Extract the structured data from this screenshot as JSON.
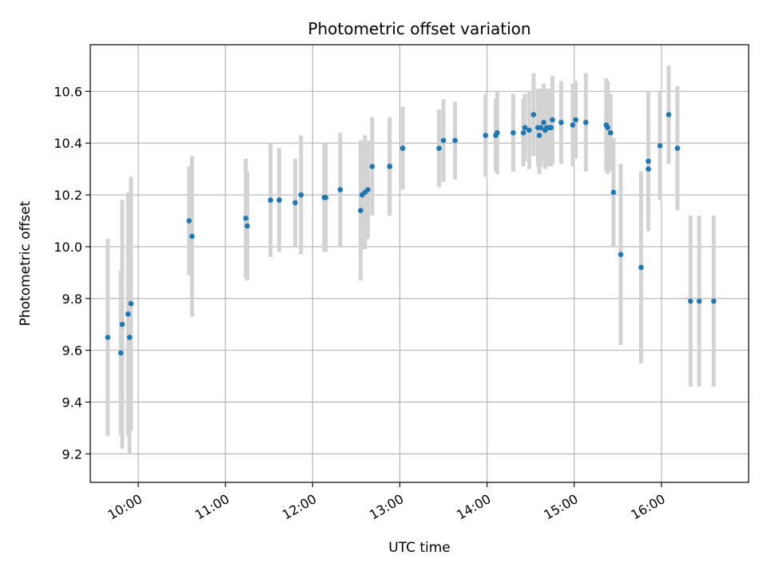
{
  "chart_data": {
    "type": "scatter",
    "title": "Photometric offset variation",
    "xlabel": "UTC time",
    "ylabel": "Photometric offset",
    "x_is_time": true,
    "xlim": [
      "09:27",
      "17:00"
    ],
    "ylim": [
      9.09,
      10.78
    ],
    "xticks": [
      "10:00",
      "11:00",
      "12:00",
      "13:00",
      "14:00",
      "15:00",
      "16:00"
    ],
    "yticks": [
      9.2,
      9.4,
      9.6,
      9.8,
      10.0,
      10.2,
      10.4,
      10.6
    ],
    "grid": true,
    "colors": {
      "point": "#1f77b4",
      "errorbar": "#d3d3d3",
      "grid": "#b0b0b0"
    },
    "series": [
      {
        "x": [
          "09:39",
          "09:48",
          "09:49",
          "09:53",
          "09:54",
          "09:55",
          "10:35",
          "10:37",
          "11:14",
          "11:15",
          "11:31",
          "11:37",
          "11:48",
          "11:52",
          "12:08",
          "12:09",
          "12:19",
          "12:33",
          "12:34",
          "12:36",
          "12:38",
          "12:41",
          "12:53",
          "12:53",
          "13:02",
          "13:27",
          "13:30",
          "13:38",
          "13:59",
          "14:06",
          "14:07",
          "14:18",
          "14:25",
          "14:26",
          "14:29",
          "14:32",
          "14:35",
          "14:36",
          "14:37",
          "14:39",
          "14:40",
          "14:41",
          "14:43",
          "14:44",
          "14:45",
          "14:51",
          "14:59",
          "15:01",
          "15:08",
          "15:22",
          "15:23",
          "15:25",
          "15:27",
          "15:32",
          "15:46",
          "15:51",
          "15:51",
          "15:59",
          "16:05",
          "16:11",
          "16:20",
          "16:26",
          "16:36"
        ],
        "y": [
          9.65,
          9.59,
          9.7,
          9.74,
          9.65,
          9.78,
          10.1,
          10.04,
          10.11,
          10.08,
          10.18,
          10.18,
          10.17,
          10.2,
          10.19,
          10.19,
          10.22,
          10.14,
          10.2,
          10.21,
          10.22,
          10.31,
          10.31,
          10.31,
          10.38,
          10.38,
          10.41,
          10.41,
          10.43,
          10.43,
          10.44,
          10.44,
          10.44,
          10.46,
          10.45,
          10.51,
          10.46,
          10.43,
          10.46,
          10.48,
          10.45,
          10.46,
          10.46,
          10.46,
          10.49,
          10.48,
          10.47,
          10.49,
          10.48,
          10.47,
          10.46,
          10.44,
          10.21,
          9.97,
          9.92,
          10.33,
          10.3,
          10.39,
          10.51,
          10.38,
          9.79,
          9.79,
          9.79
        ],
        "yerr": [
          0.38,
          0.32,
          0.48,
          0.47,
          0.45,
          0.49,
          0.21,
          0.31,
          0.23,
          0.21,
          0.22,
          0.2,
          0.17,
          0.23,
          0.21,
          0.21,
          0.22,
          0.27,
          0.21,
          0.22,
          0.19,
          0.19,
          0.19,
          0.18,
          0.16,
          0.15,
          0.16,
          0.15,
          0.16,
          0.14,
          0.16,
          0.15,
          0.13,
          0.13,
          0.15,
          0.16,
          0.15,
          0.15,
          0.15,
          0.15,
          0.15,
          0.15,
          0.15,
          0.15,
          0.17,
          0.16,
          0.16,
          0.15,
          0.19,
          0.18,
          0.18,
          0.15,
          0.21,
          0.35,
          0.37,
          0.27,
          0.18,
          0.21,
          0.19,
          0.24,
          0.33,
          0.33,
          0.33
        ]
      }
    ]
  }
}
